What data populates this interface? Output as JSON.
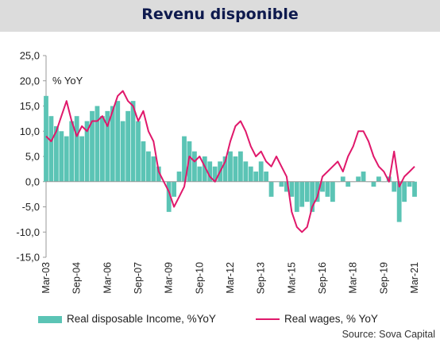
{
  "header": {
    "title": "Revenu disponible"
  },
  "source": "Source: Sova Capital",
  "colors": {
    "bars": "#5bc4b5",
    "line": "#e0186b",
    "axis": "#999999",
    "text": "#222222",
    "header_bg": "#dcdcdc",
    "title": "#0e1a4e"
  },
  "chart_data": {
    "type": "bar",
    "unit_label": "% YoY",
    "ylim": [
      -15,
      25
    ],
    "yticks": [
      "25,0",
      "20,0",
      "15,0",
      "10,0",
      "5,0",
      "0,0",
      "-5,0",
      "-10,0",
      "-15,0"
    ],
    "x_start": "Mar-03",
    "x_end": "Mar-21",
    "xticks": [
      "Mar-03",
      "Sep-04",
      "Mar-06",
      "Sep-07",
      "Mar-09",
      "Sep-10",
      "Mar-12",
      "Sep-13",
      "Mar-15",
      "Sep-16",
      "Mar-18",
      "Sep-19",
      "Mar-21"
    ],
    "series": [
      {
        "name": "Real disposable Income, %YoY",
        "type": "bar",
        "x": [
          "2003-03",
          "2003-06",
          "2003-09",
          "2003-12",
          "2004-03",
          "2004-06",
          "2004-09",
          "2004-12",
          "2005-03",
          "2005-06",
          "2005-09",
          "2005-12",
          "2006-03",
          "2006-06",
          "2006-09",
          "2006-12",
          "2007-03",
          "2007-06",
          "2007-09",
          "2007-12",
          "2008-03",
          "2008-06",
          "2008-09",
          "2008-12",
          "2009-03",
          "2009-06",
          "2009-09",
          "2009-12",
          "2010-03",
          "2010-06",
          "2010-09",
          "2010-12",
          "2011-03",
          "2011-06",
          "2011-09",
          "2011-12",
          "2012-03",
          "2012-06",
          "2012-09",
          "2012-12",
          "2013-03",
          "2013-06",
          "2013-09",
          "2013-12",
          "2014-03",
          "2014-06",
          "2014-09",
          "2014-12",
          "2015-03",
          "2015-06",
          "2015-09",
          "2015-12",
          "2016-03",
          "2016-06",
          "2016-09",
          "2016-12",
          "2017-03",
          "2017-06",
          "2017-09",
          "2017-12",
          "2018-03",
          "2018-06",
          "2018-09",
          "2018-12",
          "2019-03",
          "2019-06",
          "2019-09",
          "2019-12",
          "2020-03",
          "2020-06",
          "2020-09",
          "2020-12",
          "2021-03"
        ],
        "values": [
          17,
          13,
          11,
          10,
          9,
          12,
          13,
          9,
          12,
          14,
          15,
          13,
          14,
          15,
          16,
          12,
          14,
          16,
          12,
          8,
          6,
          5,
          3,
          0,
          -6,
          -3,
          2,
          9,
          8,
          6,
          3,
          5,
          4,
          3,
          4,
          5,
          6,
          5,
          6,
          4,
          3,
          2,
          4,
          2,
          -3,
          0,
          -1,
          -2,
          -3,
          -6,
          -5,
          -4,
          -6,
          -4,
          -2,
          -3,
          -4,
          0,
          1,
          -1,
          0,
          1,
          2,
          0,
          -1,
          1,
          0,
          1,
          -2,
          -8,
          -4,
          -1,
          -3
        ]
      },
      {
        "name": "Real wages, % YoY",
        "type": "line",
        "x": [
          "2003-03",
          "2003-06",
          "2003-09",
          "2003-12",
          "2004-03",
          "2004-06",
          "2004-09",
          "2004-12",
          "2005-03",
          "2005-06",
          "2005-09",
          "2005-12",
          "2006-03",
          "2006-06",
          "2006-09",
          "2006-12",
          "2007-03",
          "2007-06",
          "2007-09",
          "2007-12",
          "2008-03",
          "2008-06",
          "2008-09",
          "2008-12",
          "2009-03",
          "2009-06",
          "2009-09",
          "2009-12",
          "2010-03",
          "2010-06",
          "2010-09",
          "2010-12",
          "2011-03",
          "2011-06",
          "2011-09",
          "2011-12",
          "2012-03",
          "2012-06",
          "2012-09",
          "2012-12",
          "2013-03",
          "2013-06",
          "2013-09",
          "2013-12",
          "2014-03",
          "2014-06",
          "2014-09",
          "2014-12",
          "2015-03",
          "2015-06",
          "2015-09",
          "2015-12",
          "2016-03",
          "2016-06",
          "2016-09",
          "2016-12",
          "2017-03",
          "2017-06",
          "2017-09",
          "2017-12",
          "2018-03",
          "2018-06",
          "2018-09",
          "2018-12",
          "2019-03",
          "2019-06",
          "2019-09",
          "2019-12",
          "2020-03",
          "2020-06",
          "2020-09",
          "2020-12",
          "2021-03"
        ],
        "values": [
          9,
          8,
          10,
          13,
          16,
          12,
          9,
          11,
          10,
          12,
          12,
          13,
          11,
          14,
          17,
          18,
          16,
          15,
          12,
          14,
          10,
          8,
          2,
          0,
          -2,
          -5,
          -3,
          -1,
          5,
          4,
          5,
          3,
          1,
          0,
          2,
          4,
          8,
          11,
          12,
          10,
          7,
          5,
          6,
          4,
          3,
          5,
          3,
          1,
          -6,
          -9,
          -10,
          -9,
          -5,
          -3,
          1,
          2,
          3,
          4,
          2,
          5,
          7,
          10,
          10,
          8,
          5,
          3,
          2,
          0,
          6,
          -1,
          1,
          2,
          3
        ]
      }
    ]
  }
}
